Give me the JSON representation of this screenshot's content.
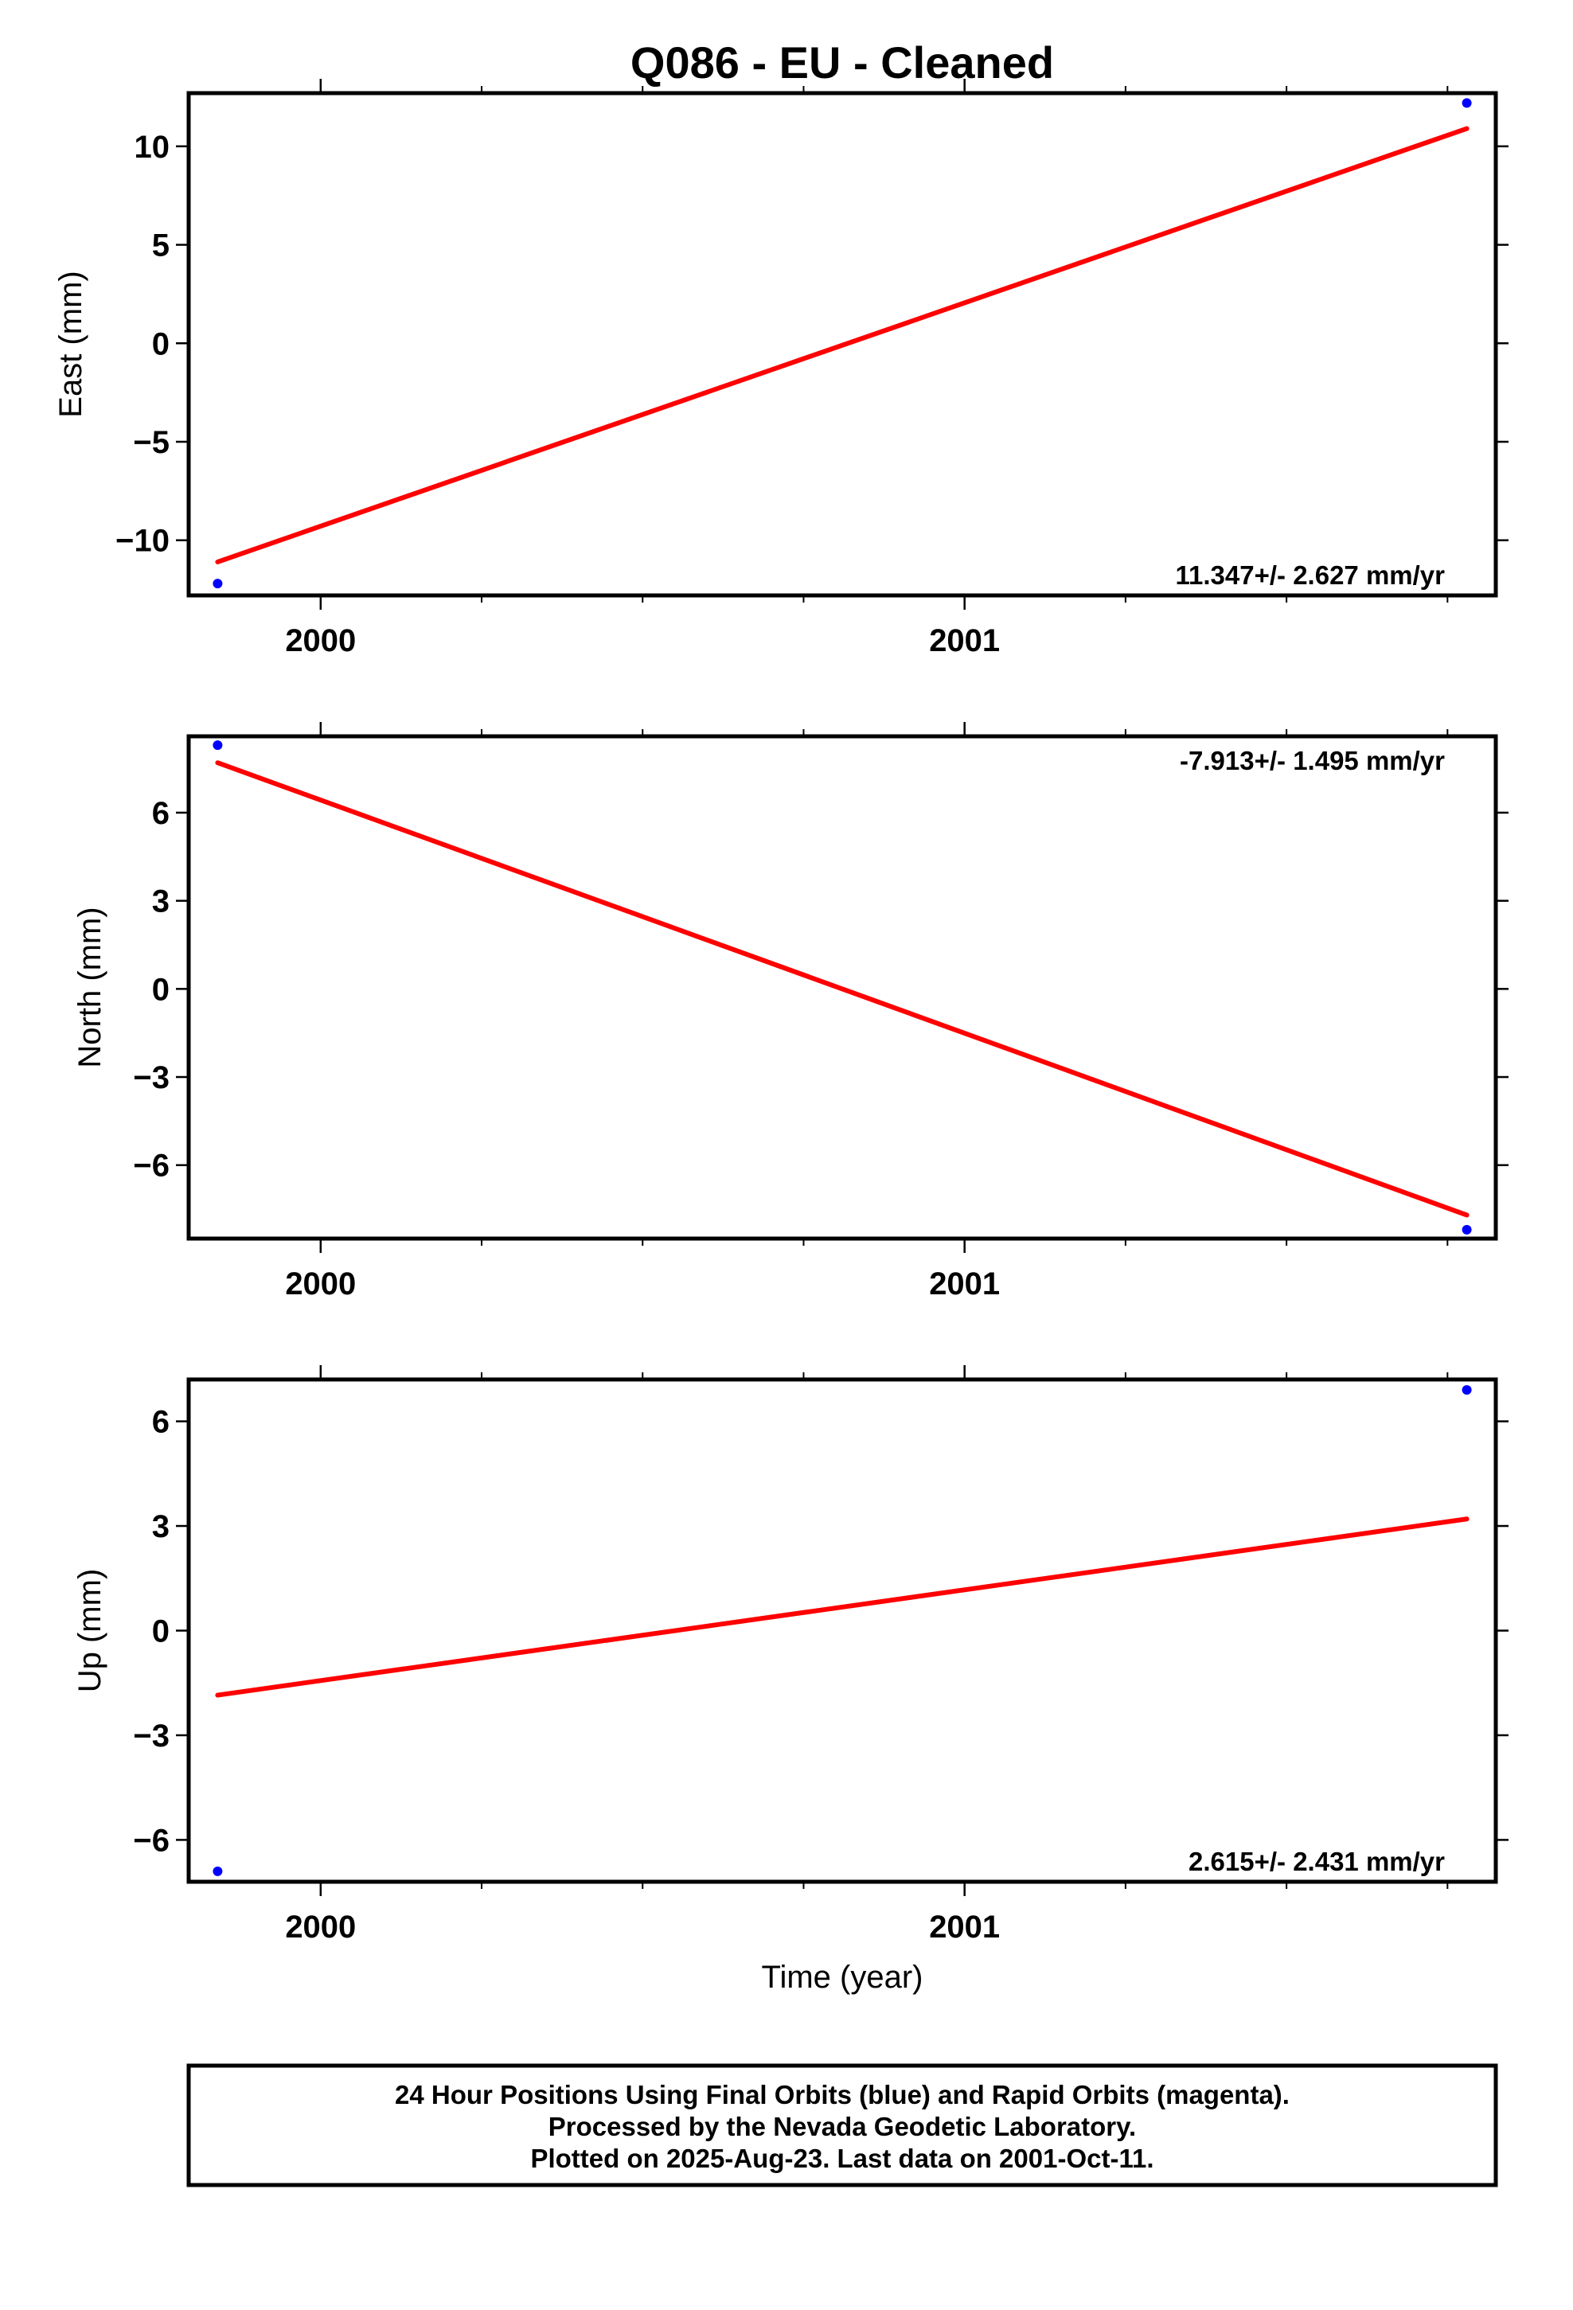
{
  "title": "Q086  - EU - Cleaned",
  "chart_data": [
    {
      "type": "scatter",
      "ylabel": "East (mm)",
      "xlabel": "",
      "xlim": [
        1999.795,
        2001.825
      ],
      "ylim": [
        -12.8,
        12.7
      ],
      "yticks": [
        -10,
        -5,
        0,
        5,
        10
      ],
      "xtick_labels": [
        "2000",
        "2001"
      ],
      "points_final": [
        [
          1999.84,
          -12.2
        ],
        [
          2001.78,
          12.2
        ]
      ],
      "points_rapid": [],
      "trend": {
        "x": [
          1999.84,
          2001.78
        ],
        "y": [
          -11.1,
          10.9
        ]
      },
      "rate_label": "11.347+/- 2.627 mm/yr"
    },
    {
      "type": "scatter",
      "ylabel": "North (mm)",
      "xlabel": "",
      "xlim": [
        1999.795,
        2001.825
      ],
      "ylim": [
        -8.5,
        8.6
      ],
      "yticks": [
        -6,
        -3,
        0,
        3,
        6
      ],
      "xtick_labels": [
        "2000",
        "2001"
      ],
      "points_final": [
        [
          1999.84,
          8.3
        ],
        [
          2001.78,
          -8.2
        ]
      ],
      "points_rapid": [],
      "trend": {
        "x": [
          1999.84,
          2001.78
        ],
        "y": [
          7.7,
          -7.7
        ]
      },
      "rate_label": "-7.913+/- 1.495 mm/yr"
    },
    {
      "type": "scatter",
      "ylabel": "Up (mm)",
      "xlabel": "Time (year)",
      "xlim": [
        1999.795,
        2001.825
      ],
      "ylim": [
        -7.2,
        7.2
      ],
      "yticks": [
        -6,
        -3,
        0,
        3,
        6
      ],
      "xtick_labels": [
        "2000",
        "2001"
      ],
      "points_final": [
        [
          1999.84,
          -6.9
        ],
        [
          2001.78,
          6.9
        ]
      ],
      "points_rapid": [],
      "trend": {
        "x": [
          1999.84,
          2001.78
        ],
        "y": [
          -1.85,
          3.2
        ]
      },
      "rate_label": "2.615+/- 2.431 mm/yr"
    }
  ],
  "footer": {
    "line1": "24 Hour Positions Using Final Orbits (blue) and Rapid Orbits (magenta).",
    "line2": "Processed by the Nevada Geodetic Laboratory.",
    "line3": "Plotted on 2025-Aug-23. Last data on 2001-Oct-11."
  },
  "colors": {
    "final": "#0000ff",
    "rapid": "#ff00ff",
    "trend": "#ff0000",
    "frame": "#000000"
  }
}
